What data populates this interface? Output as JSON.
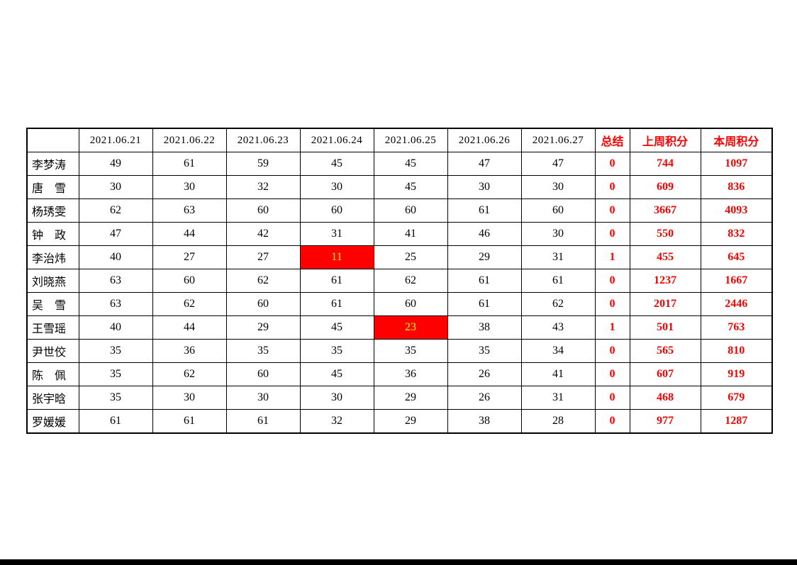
{
  "table": {
    "corner_label": "",
    "date_columns": [
      "2021.06.21",
      "2021.06.22",
      "2021.06.23",
      "2021.06.24",
      "2021.06.25",
      "2021.06.26",
      "2021.06.27"
    ],
    "summary_columns": [
      "总结",
      "上周积分",
      "本周积分"
    ],
    "rows": [
      {
        "name": "李梦涛",
        "daily": [
          49,
          61,
          59,
          45,
          45,
          47,
          47
        ],
        "summary": 0,
        "last_week": 744,
        "this_week": 1097,
        "highlight": null
      },
      {
        "name": "唐　雪",
        "daily": [
          30,
          30,
          32,
          30,
          45,
          30,
          30
        ],
        "summary": 0,
        "last_week": 609,
        "this_week": 836,
        "highlight": null
      },
      {
        "name": "杨琇雯",
        "daily": [
          62,
          63,
          60,
          60,
          60,
          61,
          60
        ],
        "summary": 0,
        "last_week": 3667,
        "this_week": 4093,
        "highlight": null
      },
      {
        "name": "钟　政",
        "daily": [
          47,
          44,
          42,
          31,
          41,
          46,
          30
        ],
        "summary": 0,
        "last_week": 550,
        "this_week": 832,
        "highlight": null
      },
      {
        "name": "李治炜",
        "daily": [
          40,
          27,
          27,
          11,
          25,
          29,
          31
        ],
        "summary": 1,
        "last_week": 455,
        "this_week": 645,
        "highlight": 3
      },
      {
        "name": "刘晓燕",
        "daily": [
          63,
          60,
          62,
          61,
          62,
          61,
          61
        ],
        "summary": 0,
        "last_week": 1237,
        "this_week": 1667,
        "highlight": null
      },
      {
        "name": "吴　雪",
        "daily": [
          63,
          62,
          60,
          61,
          60,
          61,
          62
        ],
        "summary": 0,
        "last_week": 2017,
        "this_week": 2446,
        "highlight": null
      },
      {
        "name": "王雪瑶",
        "daily": [
          40,
          44,
          29,
          45,
          23,
          38,
          43
        ],
        "summary": 1,
        "last_week": 501,
        "this_week": 763,
        "highlight": 4
      },
      {
        "name": "尹世佼",
        "daily": [
          35,
          36,
          35,
          35,
          35,
          35,
          34
        ],
        "summary": 0,
        "last_week": 565,
        "this_week": 810,
        "highlight": null
      },
      {
        "name": "陈　佩",
        "daily": [
          35,
          62,
          60,
          45,
          36,
          26,
          41
        ],
        "summary": 0,
        "last_week": 607,
        "this_week": 919,
        "highlight": null
      },
      {
        "name": "张宇晗",
        "daily": [
          35,
          30,
          30,
          30,
          29,
          26,
          31
        ],
        "summary": 0,
        "last_week": 468,
        "this_week": 679,
        "highlight": null
      },
      {
        "name": "罗媛媛",
        "daily": [
          61,
          61,
          61,
          32,
          29,
          38,
          28
        ],
        "summary": 0,
        "last_week": 977,
        "this_week": 1287,
        "highlight": null
      }
    ]
  },
  "colors": {
    "accent_red": "#ff0000",
    "highlight_bg": "#ff0000",
    "highlight_text": "#ffff00",
    "border": "#000000",
    "footer_bar": "#000000"
  }
}
